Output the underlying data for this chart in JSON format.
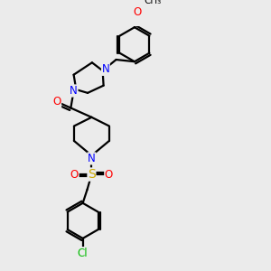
{
  "bg_color": "#ebebeb",
  "atom_colors": {
    "C": "#000000",
    "N": "#0000ff",
    "O": "#ff0000",
    "S": "#ccaa00",
    "Cl": "#00bb00",
    "H": "#000000"
  },
  "bond_color": "#000000",
  "bond_width": 1.6,
  "font_size": 8.5
}
